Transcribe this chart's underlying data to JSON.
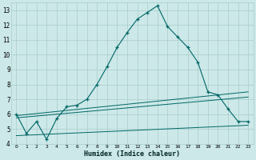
{
  "xlabel": "Humidex (Indice chaleur)",
  "bg_color": "#cce8e8",
  "grid_color": "#aacccc",
  "line_color": "#006666",
  "xlim": [
    -0.5,
    23.5
  ],
  "ylim": [
    4,
    13.5
  ],
  "x_ticks": [
    0,
    1,
    2,
    3,
    4,
    5,
    6,
    7,
    8,
    9,
    10,
    11,
    12,
    13,
    14,
    15,
    16,
    17,
    18,
    19,
    20,
    21,
    22,
    23
  ],
  "y_ticks": [
    4,
    5,
    6,
    7,
    8,
    9,
    10,
    11,
    12,
    13
  ],
  "curve1_x": [
    0,
    1,
    2,
    3,
    4,
    5,
    6,
    7,
    8,
    9,
    10,
    11,
    12,
    13,
    14,
    15,
    16,
    17,
    18,
    19,
    20,
    21,
    22,
    23
  ],
  "curve1_y": [
    6.0,
    4.7,
    5.5,
    4.3,
    5.7,
    6.5,
    6.6,
    7.0,
    8.0,
    9.2,
    10.5,
    11.5,
    12.4,
    12.85,
    13.3,
    11.9,
    11.2,
    10.5,
    9.5,
    7.5,
    7.3,
    6.35,
    5.5,
    5.5
  ],
  "line2_x": [
    0,
    23
  ],
  "line2_y": [
    5.9,
    7.5
  ],
  "line3_x": [
    0,
    23
  ],
  "line3_y": [
    5.75,
    7.15
  ],
  "line4_x": [
    0,
    23
  ],
  "line4_y": [
    4.55,
    5.25
  ]
}
